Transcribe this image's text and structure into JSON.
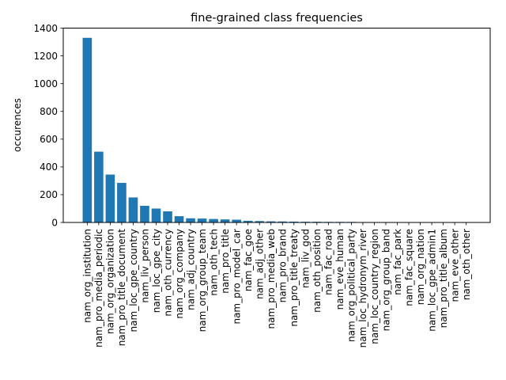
{
  "chart_data": {
    "type": "bar",
    "title": "fine-grained class frequencies",
    "xlabel": "",
    "ylabel": "occurences",
    "ylim": [
      0,
      1400
    ],
    "yticks": [
      0,
      200,
      400,
      600,
      800,
      1000,
      1200,
      1400
    ],
    "grid": false,
    "bar_color": "#1f77b4",
    "categories": [
      "nam_org_institution",
      "nam_pro_media_periodic",
      "nam_org_organization",
      "nam_pro_title_document",
      "nam_loc_gpe_country",
      "nam_liv_person",
      "nam_loc_gpe_city",
      "nam_oth_currency",
      "nam_org_company",
      "nam_adj_country",
      "nam_org_group_team",
      "nam_oth_tech",
      "nam_pro_title",
      "nam_pro_model_car",
      "nam_fac_goe",
      "nam_adj_other",
      "nam_pro_media_web",
      "nam_pro_brand",
      "nam_pro_title_treaty",
      "nam_liv_god",
      "nam_oth_position",
      "nam_fac_road",
      "nam_eve_human",
      "nam_org_political_party",
      "nam_loc_hydronym_river",
      "nam_loc_country_region",
      "nam_org_group_band",
      "nam_fac_park",
      "nam_fac_square",
      "nam_org_nation",
      "nam_loc_gpe_admin1",
      "nam_pro_title_album",
      "nam_eve_other",
      "nam_oth_other"
    ],
    "values": [
      1330,
      510,
      345,
      285,
      180,
      120,
      100,
      80,
      45,
      30,
      28,
      25,
      22,
      20,
      12,
      10,
      8,
      7,
      6,
      5,
      5,
      4,
      4,
      4,
      3,
      3,
      3,
      2,
      2,
      2,
      2,
      2,
      2,
      2
    ]
  }
}
